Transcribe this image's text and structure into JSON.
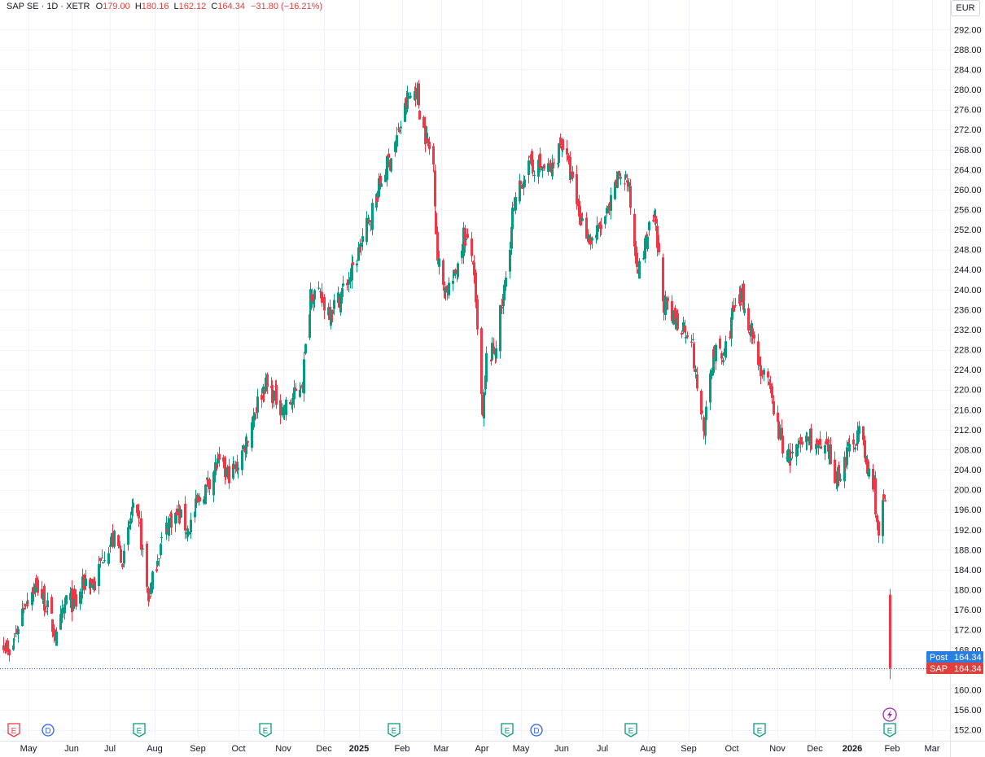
{
  "header": {
    "symbol": "SAP SE · 1D · XETR",
    "open_label": "O",
    "open_value": "179.00",
    "high_label": "H",
    "high_value": "180.16",
    "low_label": "L",
    "low_value": "162.12",
    "close_label": "C",
    "close_value": "164.34",
    "change": "−31.80 (−16.21%)"
  },
  "currency_button": "EUR",
  "price_tags": [
    {
      "label": "Post",
      "value": "164.34",
      "color": "#2a7de1"
    },
    {
      "label": "SAP",
      "value": "164.34",
      "color": "#e0403c"
    }
  ],
  "colors": {
    "up": "#089981",
    "down": "#f23645",
    "grid": "#f0f3fa",
    "dotted_line": "#2962ff",
    "dividend": "#2962ff",
    "lightning": "#9c27b0"
  },
  "chart_data": {
    "type": "candlestick",
    "ylim": [
      150,
      294
    ],
    "y_ticks": [
      "292.00",
      "288.00",
      "284.00",
      "280.00",
      "276.00",
      "272.00",
      "268.00",
      "264.00",
      "260.00",
      "256.00",
      "252.00",
      "248.00",
      "244.00",
      "240.00",
      "236.00",
      "232.00",
      "228.00",
      "224.00",
      "220.00",
      "216.00",
      "212.00",
      "208.00",
      "204.00",
      "200.00",
      "196.00",
      "192.00",
      "188.00",
      "184.00",
      "180.00",
      "176.00",
      "172.00",
      "168.00",
      "164.00",
      "160.00",
      "156.00",
      "152.00"
    ],
    "x_ticks": [
      {
        "label": "May",
        "bold": false
      },
      {
        "label": "Jun",
        "bold": false
      },
      {
        "label": "Jul",
        "bold": false
      },
      {
        "label": "Aug",
        "bold": false
      },
      {
        "label": "Sep",
        "bold": false
      },
      {
        "label": "Oct",
        "bold": false
      },
      {
        "label": "Nov",
        "bold": false
      },
      {
        "label": "Dec",
        "bold": false
      },
      {
        "label": "2025",
        "bold": true
      },
      {
        "label": "Feb",
        "bold": false
      },
      {
        "label": "Mar",
        "bold": false
      },
      {
        "label": "Apr",
        "bold": false
      },
      {
        "label": "May",
        "bold": false
      },
      {
        "label": "Jun",
        "bold": false
      },
      {
        "label": "Jul",
        "bold": false
      },
      {
        "label": "Aug",
        "bold": false
      },
      {
        "label": "Sep",
        "bold": false
      },
      {
        "label": "Oct",
        "bold": false
      },
      {
        "label": "Nov",
        "bold": false
      },
      {
        "label": "Dec",
        "bold": false
      },
      {
        "label": "2026",
        "bold": true
      },
      {
        "label": "Feb",
        "bold": false
      },
      {
        "label": "Mar",
        "bold": false
      }
    ],
    "last_price": 164.34,
    "events": [
      {
        "type": "E",
        "after_label": "Apr 2024",
        "color": "#f23645"
      },
      {
        "type": "D",
        "after_label": "May 2024",
        "color": "#2962ff"
      },
      {
        "type": "E",
        "after_label": "Jul 2024",
        "color": "#089981"
      },
      {
        "type": "E",
        "after_label": "Oct 2024",
        "color": "#089981"
      },
      {
        "type": "E",
        "after_label": "Jan 2025",
        "color": "#089981"
      },
      {
        "type": "E",
        "after_label": "Apr 2025",
        "color": "#089981"
      },
      {
        "type": "D",
        "after_label": "May 2025",
        "color": "#2962ff"
      },
      {
        "type": "E",
        "after_label": "Jul 2025",
        "color": "#089981"
      },
      {
        "type": "E",
        "after_label": "Oct 2025",
        "color": "#089981"
      },
      {
        "type": "E",
        "after_label": "Jan 2026",
        "color": "#089981"
      }
    ],
    "close_waypoints": [
      [
        "2024-04-22",
        170
      ],
      [
        "2024-04-26",
        166
      ],
      [
        "2024-05-08",
        178
      ],
      [
        "2024-05-16",
        181
      ],
      [
        "2024-05-23",
        177
      ],
      [
        "2024-05-31",
        170
      ],
      [
        "2024-06-07",
        178
      ],
      [
        "2024-06-14",
        177
      ],
      [
        "2024-06-21",
        182
      ],
      [
        "2024-06-28",
        181
      ],
      [
        "2024-07-05",
        188
      ],
      [
        "2024-07-12",
        190
      ],
      [
        "2024-07-19",
        186
      ],
      [
        "2024-07-25",
        196
      ],
      [
        "2024-07-31",
        192
      ],
      [
        "2024-08-06",
        178
      ],
      [
        "2024-08-13",
        187
      ],
      [
        "2024-08-21",
        194
      ],
      [
        "2024-08-28",
        195
      ],
      [
        "2024-09-04",
        192
      ],
      [
        "2024-09-11",
        197
      ],
      [
        "2024-09-18",
        201
      ],
      [
        "2024-09-25",
        205
      ],
      [
        "2024-10-02",
        203
      ],
      [
        "2024-10-09",
        204
      ],
      [
        "2024-10-16",
        209
      ],
      [
        "2024-10-23",
        216
      ],
      [
        "2024-10-30",
        221
      ],
      [
        "2024-11-06",
        219
      ],
      [
        "2024-11-13",
        216
      ],
      [
        "2024-11-20",
        218
      ],
      [
        "2024-11-27",
        222
      ],
      [
        "2024-12-03",
        240
      ],
      [
        "2024-12-10",
        238
      ],
      [
        "2024-12-17",
        236
      ],
      [
        "2024-12-23",
        238
      ],
      [
        "2025-01-03",
        244
      ],
      [
        "2025-01-10",
        250
      ],
      [
        "2025-01-17",
        256
      ],
      [
        "2025-01-24",
        262
      ],
      [
        "2025-01-31",
        267
      ],
      [
        "2025-02-06",
        272
      ],
      [
        "2025-02-12",
        278
      ],
      [
        "2025-02-18",
        280
      ],
      [
        "2025-02-24",
        272
      ],
      [
        "2025-03-03",
        265
      ],
      [
        "2025-03-06",
        246
      ],
      [
        "2025-03-11",
        240
      ],
      [
        "2025-03-18",
        242
      ],
      [
        "2025-03-25",
        251
      ],
      [
        "2025-04-01",
        246
      ],
      [
        "2025-04-04",
        231
      ],
      [
        "2025-04-08",
        214
      ],
      [
        "2025-04-11",
        226
      ],
      [
        "2025-04-17",
        228
      ],
      [
        "2025-04-24",
        240
      ],
      [
        "2025-04-30",
        255
      ],
      [
        "2025-05-08",
        263
      ],
      [
        "2025-05-15",
        265
      ],
      [
        "2025-05-22",
        264
      ],
      [
        "2025-05-29",
        264
      ],
      [
        "2025-06-05",
        270
      ],
      [
        "2025-06-12",
        262
      ],
      [
        "2025-06-19",
        254
      ],
      [
        "2025-06-26",
        250
      ],
      [
        "2025-07-03",
        252
      ],
      [
        "2025-07-10",
        256
      ],
      [
        "2025-07-17",
        263
      ],
      [
        "2025-07-23",
        262
      ],
      [
        "2025-07-28",
        249
      ],
      [
        "2025-08-01",
        244
      ],
      [
        "2025-08-07",
        251
      ],
      [
        "2025-08-12",
        254
      ],
      [
        "2025-08-18",
        238
      ],
      [
        "2025-08-25",
        234
      ],
      [
        "2025-09-01",
        233
      ],
      [
        "2025-09-08",
        231
      ],
      [
        "2025-09-12",
        220
      ],
      [
        "2025-09-18",
        212
      ],
      [
        "2025-09-24",
        228
      ],
      [
        "2025-10-01",
        226
      ],
      [
        "2025-10-08",
        235
      ],
      [
        "2025-10-15",
        238
      ],
      [
        "2025-10-22",
        232
      ],
      [
        "2025-10-29",
        224
      ],
      [
        "2025-11-05",
        219
      ],
      [
        "2025-11-12",
        210
      ],
      [
        "2025-11-19",
        206
      ],
      [
        "2025-11-26",
        208
      ],
      [
        "2025-12-03",
        211
      ],
      [
        "2025-12-10",
        208
      ],
      [
        "2025-12-17",
        207
      ],
      [
        "2025-12-23",
        202
      ],
      [
        "2026-01-02",
        208
      ],
      [
        "2026-01-09",
        212
      ],
      [
        "2026-01-15",
        204
      ],
      [
        "2026-01-20",
        200
      ],
      [
        "2026-01-23",
        191
      ],
      [
        "2026-01-27",
        198
      ],
      [
        "2026-01-28",
        196
      ]
    ],
    "gap_candle": {
      "open": 179.0,
      "high": 180.16,
      "low": 162.12,
      "close": 164.34
    }
  }
}
